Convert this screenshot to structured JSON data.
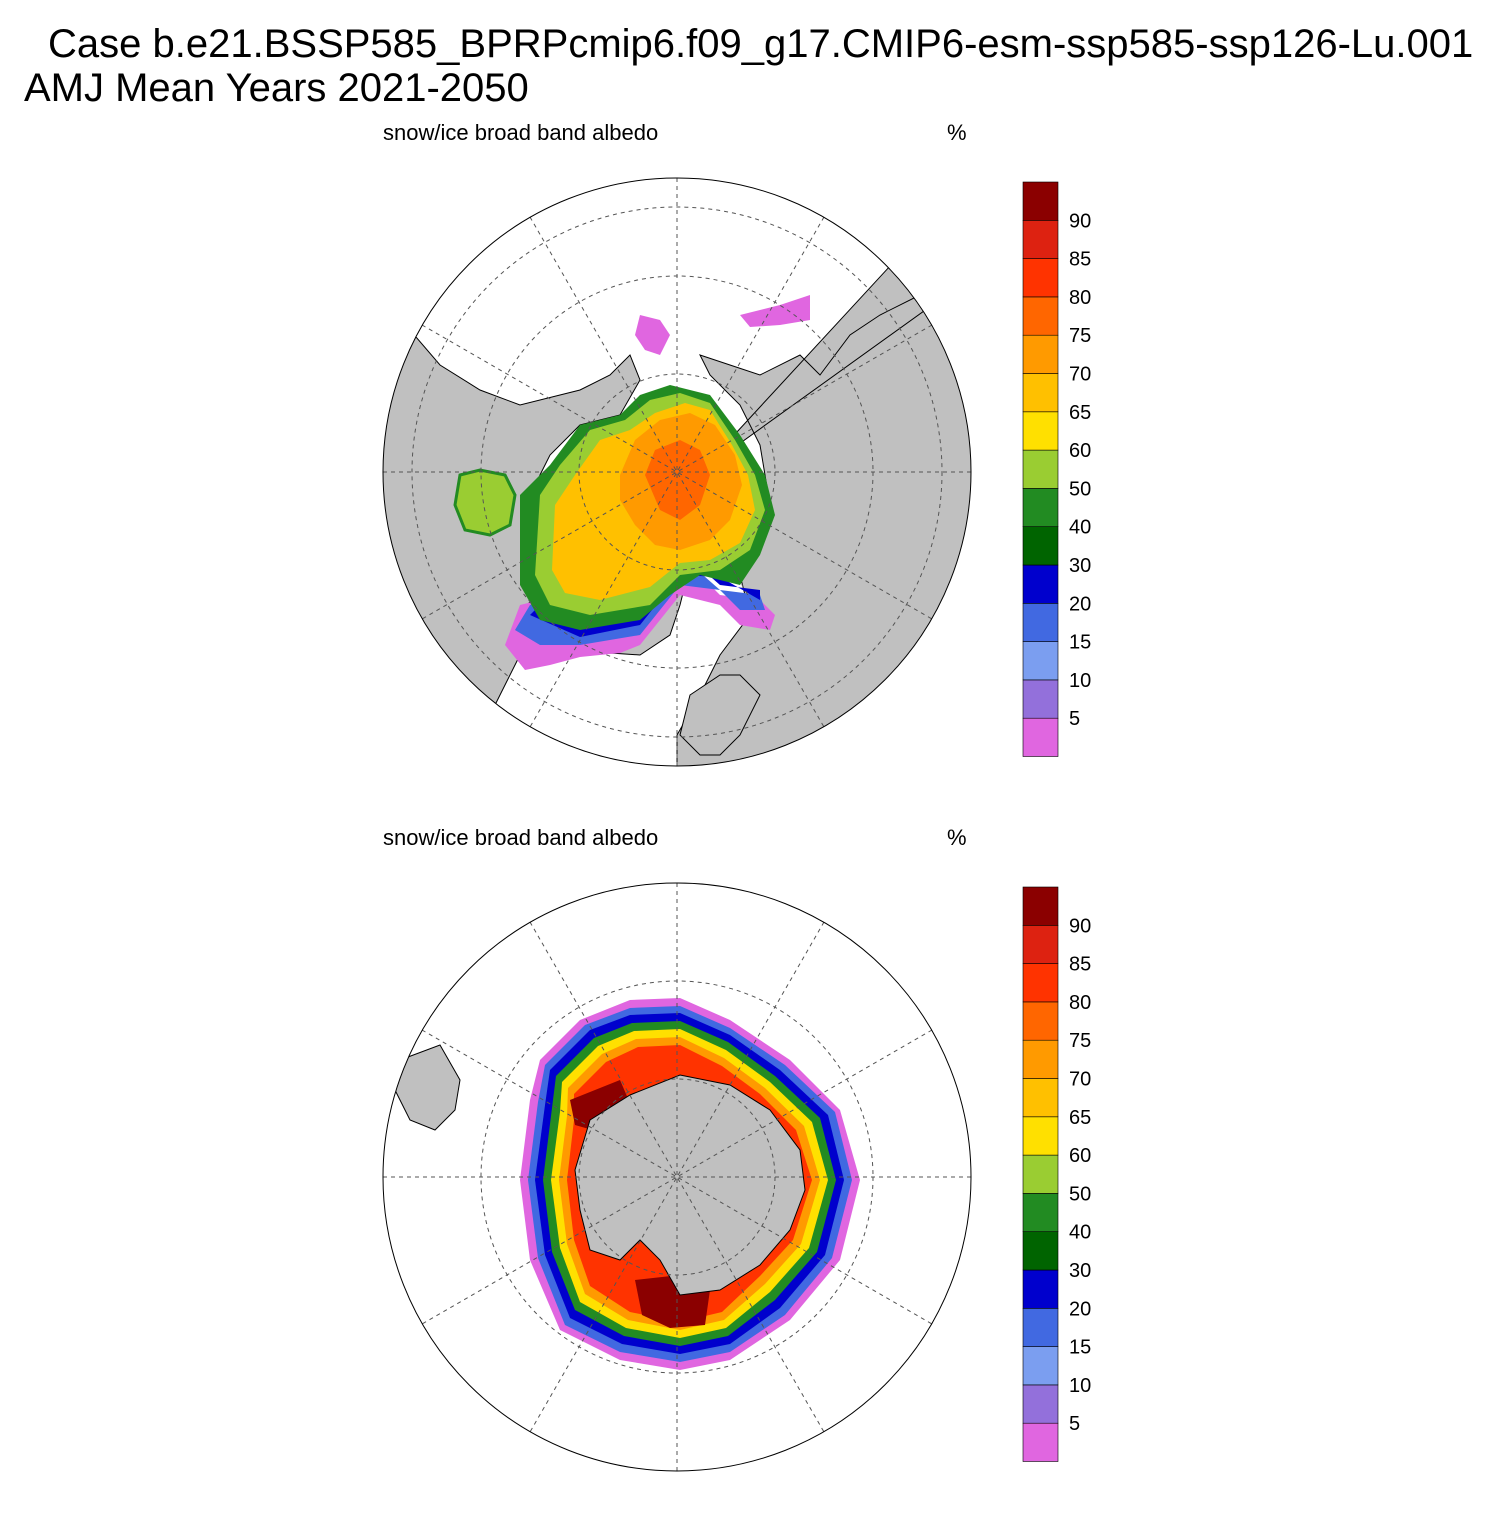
{
  "title": {
    "line1": "Case b.e21.BSSP585_BPRPcmip6.f09_g17.CMIP6-esm-ssp585-ssp126-Lu.001",
    "line2": "AMJ Mean   Years 2021-2050"
  },
  "panels": [
    {
      "id": "north",
      "variable": "snow/ice broad band albedo",
      "unit": "%",
      "hemisphere": "north"
    },
    {
      "id": "south",
      "variable": "snow/ice broad band albedo",
      "unit": "%",
      "hemisphere": "south"
    }
  ],
  "colorbar": {
    "levels": [
      "5",
      "10",
      "15",
      "20",
      "30",
      "40",
      "50",
      "60",
      "65",
      "70",
      "75",
      "80",
      "85",
      "90"
    ],
    "colors": [
      "#e066e0",
      "#9370db",
      "#7b9ef0",
      "#4169e1",
      "#0000cd",
      "#006400",
      "#228b22",
      "#9acd32",
      "#ffe000",
      "#ffc000",
      "#ff9a00",
      "#ff6600",
      "#ff3300",
      "#dd2211",
      "#8b0000"
    ]
  },
  "colors": {
    "land": "#c0c0c0",
    "ocean": "#ffffff",
    "coast": "#000000"
  }
}
